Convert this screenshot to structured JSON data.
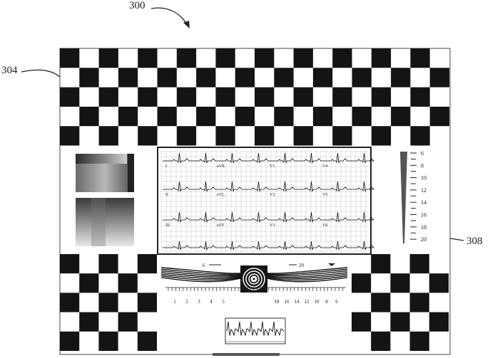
{
  "figure": {
    "references": {
      "figure": "300",
      "chart": "304",
      "ecg_region": "308"
    }
  },
  "ecg": {
    "leads": [
      [
        "I",
        "aVR",
        "V1",
        "V4"
      ],
      [
        "II",
        "aVL",
        "V2",
        "V5"
      ],
      [
        "III",
        "aVF",
        "V3",
        "V6"
      ]
    ]
  },
  "scale": {
    "labels": [
      "6",
      "8",
      "10",
      "12",
      "14",
      "16",
      "18",
      "20"
    ]
  },
  "resolution_wedge": {
    "left_label": "6",
    "right_label": "20",
    "left_ticks": [
      "1",
      "2",
      "3",
      "4",
      "5"
    ],
    "right_ticks": [
      "18",
      "16",
      "14",
      "12",
      "10",
      "8",
      "6"
    ]
  },
  "colors": {
    "ink": "#141414",
    "paper": "#ffffff",
    "grid": "#b8b8b8"
  }
}
